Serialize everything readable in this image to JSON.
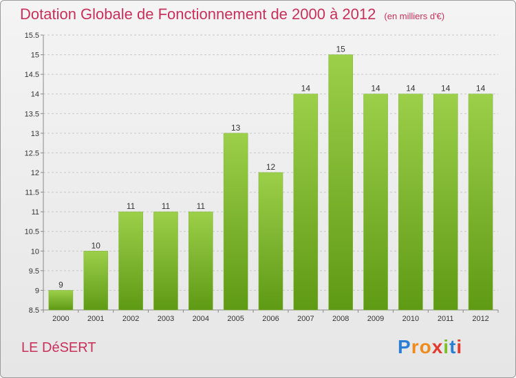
{
  "header": {
    "title": "Dotation Globale de Fonctionnement de 2000 à 2012",
    "subtitle": "(en milliers d'€)"
  },
  "footer": {
    "commune": "LE DéSERT",
    "logo_letters": [
      "P",
      "r",
      "o",
      "x",
      "i",
      "t",
      "i"
    ],
    "logo_colors": [
      "#2a7fd4",
      "#f08a1c",
      "#f08a1c",
      "#e23a2e",
      "#7bbf2a",
      "#2a7fd4",
      "#e23a2e"
    ]
  },
  "colors": {
    "bar_top": "#9ccf4a",
    "bar_bottom": "#5f9a14",
    "grid": "#c8c8c8",
    "axis": "#888888"
  },
  "chart_data": {
    "type": "bar",
    "categories": [
      "2000",
      "2001",
      "2002",
      "2003",
      "2004",
      "2005",
      "2006",
      "2007",
      "2008",
      "2009",
      "2010",
      "2011",
      "2012"
    ],
    "values": [
      9,
      10,
      11,
      11,
      11,
      13,
      12,
      14,
      15,
      14,
      14,
      14,
      14
    ],
    "data_labels": [
      "9",
      "10",
      "11",
      "11",
      "11",
      "13",
      "12",
      "14",
      "15",
      "14",
      "14",
      "14",
      "14"
    ],
    "ylim": [
      8.5,
      15.5
    ],
    "yticks": [
      8.5,
      9,
      9.5,
      10,
      10.5,
      11,
      11.5,
      12,
      12.5,
      13,
      13.5,
      14,
      14.5,
      15,
      15.5
    ],
    "ytick_labels": [
      "8.5",
      "9",
      "9.5",
      "10",
      "10.5",
      "11",
      "11.5",
      "12",
      "12.5",
      "13",
      "13.5",
      "14",
      "14.5",
      "15",
      "15.5"
    ],
    "grid": true,
    "legend": "none"
  }
}
